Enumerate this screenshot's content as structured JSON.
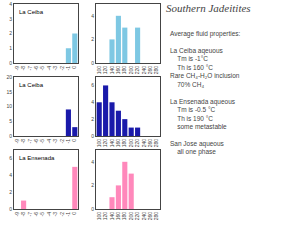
{
  "title": "Southern Jadeitites",
  "annotations": [
    "Average fluid properties:",
    "La Ceiba aqeuous\n    Tm is -1°C\n    Th is 160 °C\nRare CH₄-H₂O inclusion\n    70% CH₄",
    "La Ensenada aqueous\n    Tm is -0.5 °C\n    Th is 190 °C\n    some metastable",
    "San Jose aqueous\n    all one phase"
  ],
  "chart_data": [
    {
      "type": "bar",
      "annotations": [
        "La Ceiba"
      ],
      "color": "#7ec8e3",
      "categories": [
        "-9",
        "-8",
        "-7",
        "-6",
        "-5",
        "-4",
        "-3",
        "-2",
        "-1",
        "0"
      ],
      "values": [
        0,
        0,
        0,
        0,
        0,
        0,
        0,
        0,
        1,
        2
      ],
      "ylim": [
        0,
        4
      ],
      "yticks": [
        0,
        1,
        2,
        3,
        4
      ],
      "grid": false
    },
    {
      "type": "bar",
      "color": "#7ec8e3",
      "categories": [
        "100",
        "120",
        "140",
        "160",
        "180",
        "200",
        "220",
        "240",
        "260",
        "280"
      ],
      "values": [
        0,
        0,
        2,
        4,
        3,
        0,
        3,
        0,
        0,
        0
      ],
      "ylim": [
        0,
        5
      ],
      "yticks": [
        0,
        2,
        4
      ],
      "grid": false
    },
    {
      "type": "bar",
      "annotations": [
        "La Ceiba"
      ],
      "color": "#1a1aaa",
      "categories": [
        "-9",
        "-8",
        "-7",
        "-6",
        "-5",
        "-4",
        "-3",
        "-2",
        "-1",
        "0"
      ],
      "values": [
        0,
        0,
        0,
        0,
        0,
        0,
        0,
        0,
        9,
        3
      ],
      "ylim": [
        0,
        20
      ],
      "yticks": [
        0,
        5,
        10,
        15,
        20
      ],
      "grid": false
    },
    {
      "type": "bar",
      "color": "#1a1aaa",
      "categories": [
        "100",
        "120",
        "140",
        "160",
        "180",
        "200",
        "220",
        "240",
        "260",
        "280"
      ],
      "values": [
        4,
        6,
        4,
        3,
        2,
        1,
        1,
        0,
        0,
        0
      ],
      "ylim": [
        0,
        7
      ],
      "yticks": [
        0,
        2,
        4,
        6
      ],
      "grid": false
    },
    {
      "type": "bar",
      "annotations": [
        "La Ensenada"
      ],
      "color": "#ff88bb",
      "categories": [
        "-9",
        "-8",
        "-7",
        "-6",
        "-5",
        "-4",
        "-3",
        "-2",
        "-1",
        "0"
      ],
      "values": [
        0,
        1,
        0,
        0,
        0,
        0,
        0,
        0,
        0,
        5
      ],
      "ylim": [
        0,
        7
      ],
      "yticks": [
        0,
        2,
        4,
        6
      ],
      "grid": false
    },
    {
      "type": "bar",
      "color": "#ff88bb",
      "categories": [
        "100",
        "120",
        "140",
        "160",
        "180",
        "200",
        "220",
        "240",
        "260",
        "280"
      ],
      "values": [
        0,
        0,
        1,
        2,
        4,
        3,
        0,
        0,
        0,
        0
      ],
      "ylim": [
        0,
        5
      ],
      "yticks": [
        0,
        2,
        4
      ],
      "grid": false
    }
  ]
}
